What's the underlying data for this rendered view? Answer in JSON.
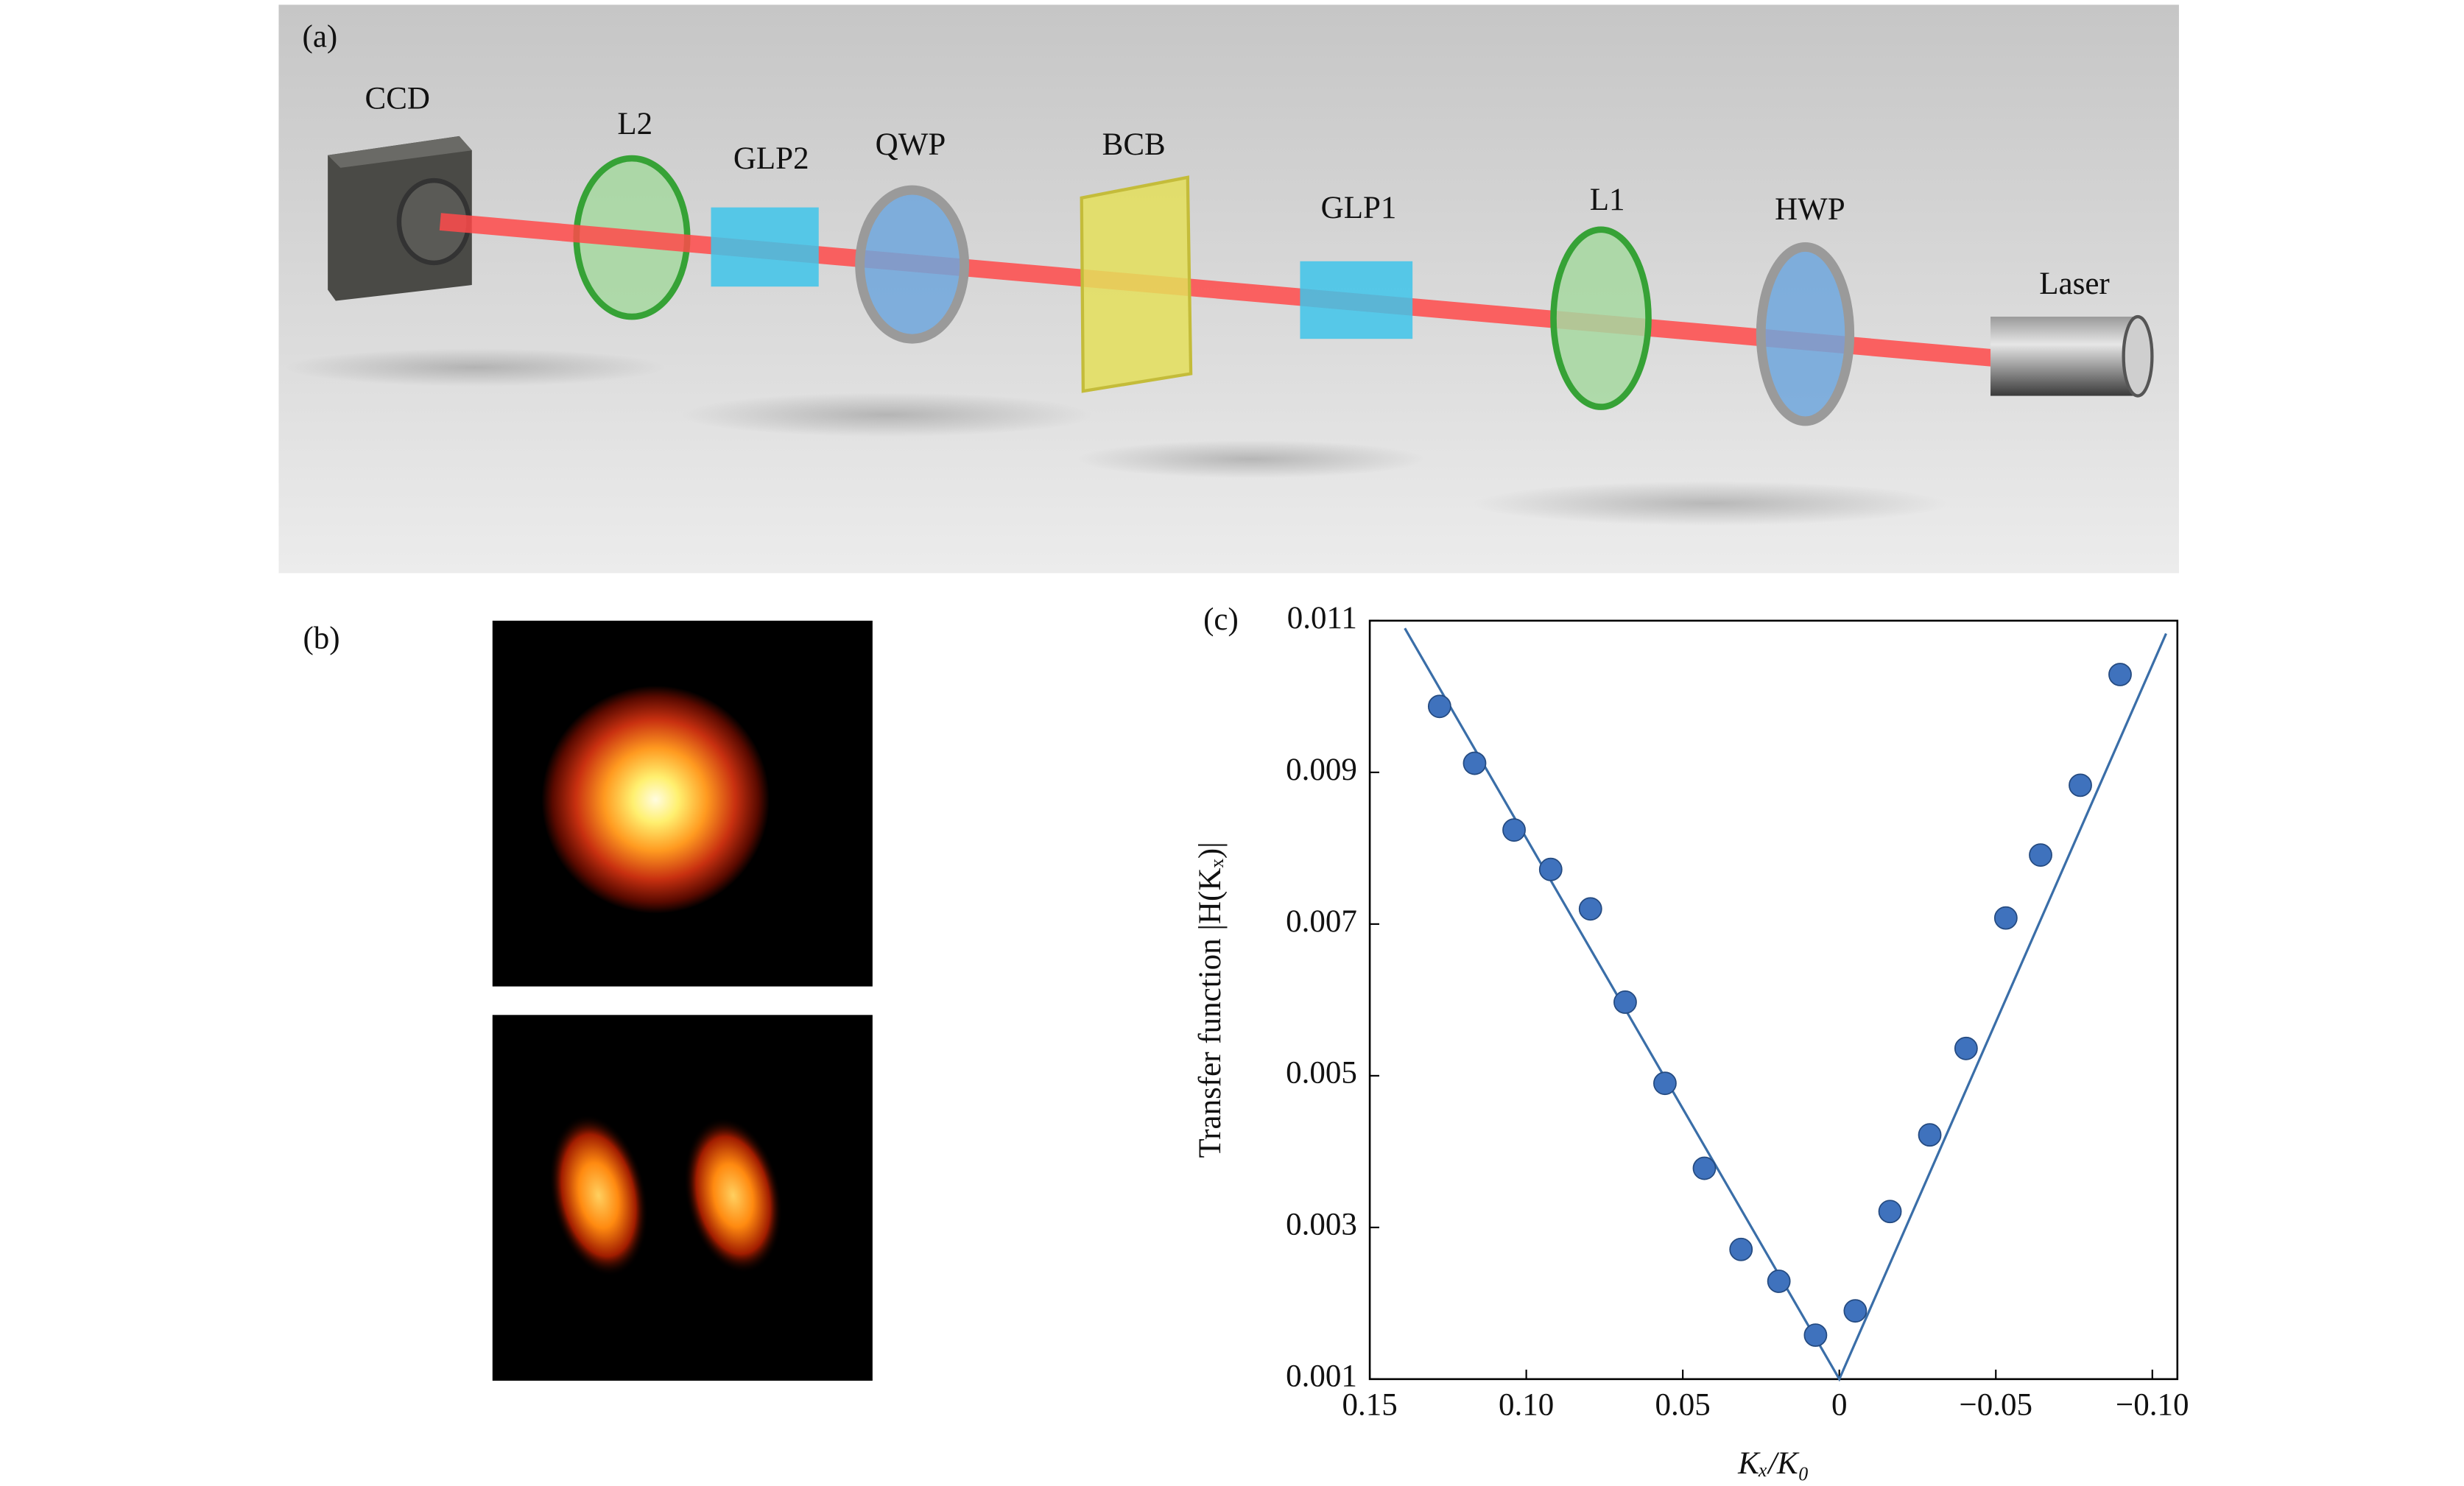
{
  "panel_labels": [
    "(a)",
    "(b)",
    "(c)"
  ],
  "setup_labels": [
    "CCD",
    "L2",
    "GLP2",
    "QWP",
    "BCB",
    "GLP1",
    "L1",
    "HWP",
    "Laser"
  ],
  "chart_data": {
    "type": "scatter",
    "x_label": "Kₓ/K₀",
    "y_label": "Transfer function |H(Kₓ)|",
    "x": [
      0.1277,
      0.1165,
      0.1039,
      0.0922,
      0.0795,
      0.0684,
      0.0557,
      0.0431,
      0.0314,
      0.0193,
      0.0076,
      -0.0051,
      -0.0162,
      -0.0289,
      -0.0405,
      -0.0532,
      -0.0643,
      -0.077,
      -0.0897
    ],
    "series": [
      {
        "color": "#3f72bd",
        "values": [
          0.00987,
          0.00912,
          0.00824,
          0.00772,
          0.0072,
          0.00597,
          0.0049,
          0.00378,
          0.00271,
          0.00229,
          0.00158,
          0.0019,
          0.00321,
          0.00422,
          0.00536,
          0.00708,
          0.00791,
          0.00883,
          0.01029
        ]
      }
    ],
    "fit": {
      "color": "#3a6ea8",
      "x": [
        0.1388,
        0,
        -0.1044
      ],
      "values": [
        0.0109,
        0.001,
        0.01083
      ]
    },
    "xlim": [
      0.15,
      -0.108
    ],
    "ylim": [
      0.001,
      0.011
    ],
    "xticks": [
      0.15,
      {
        "value": 0.1,
        "label": "0.10"
      },
      0.05,
      0,
      {
        "value": -0.05,
        "label": "−0.05"
      },
      {
        "value": -0.1,
        "label": "−0.10"
      }
    ],
    "yticks": [
      0.001,
      0.003,
      0.005,
      0.007,
      0.009,
      0.011
    ]
  }
}
